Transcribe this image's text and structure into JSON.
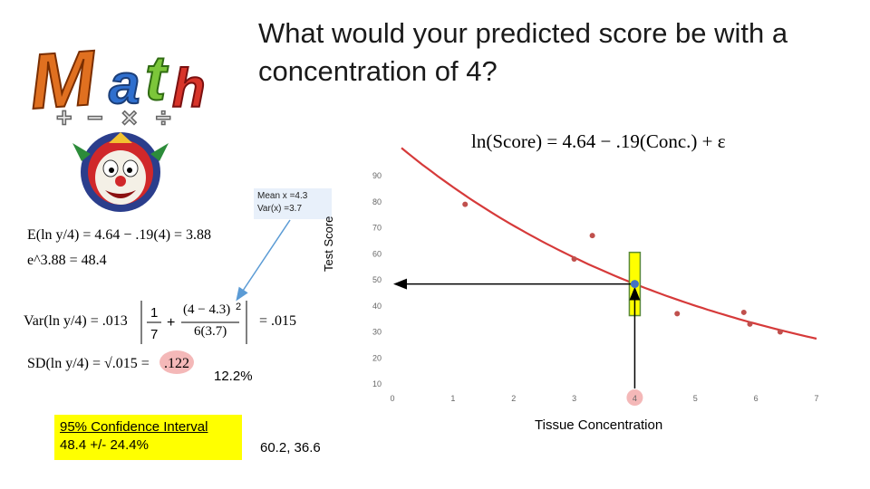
{
  "title": "What would your predicted score be with a concentration of 4?",
  "model_equation": "ln(Score) = 4.64 − .19(Conc.) + ε",
  "mean_box": {
    "line1": "Mean x =4.3",
    "line2": "Var(x) =3.7"
  },
  "equations": {
    "expected": "E(ln y/4) = 4.64 − .19(4) = 3.88",
    "exp": "e^3.88 = 48.4",
    "var_lhs": "Var(ln y/4) = .013",
    "var_frac_num": "(4 − 4.3)",
    "var_frac_den": "6(3.7)",
    "var_result": "= .015",
    "sd_lhs": "SD(ln y/4) = √.015 =",
    "sd_value": ".122"
  },
  "percent_label": "12.2%",
  "confidence_interval": {
    "title": "95% Confidence Interval",
    "value": "48.4 +/- 24.4%"
  },
  "ci_range": "60.2, 36.6",
  "colors": {
    "points": "#c0504d",
    "curve": "#d63a3a",
    "highlight": "#ffff00",
    "predicted": "#4472c4",
    "highlight_circle": "#f4b8b8"
  },
  "icons": {
    "logo": "math-logo-icon",
    "clown": "clown-face-icon"
  },
  "chart_data": {
    "type": "scatter",
    "xlabel": "Tissue Concentration",
    "ylabel": "Test Score",
    "xlim": [
      0,
      7
    ],
    "ylim": [
      10,
      90
    ],
    "xticks": [
      0,
      1,
      2,
      3,
      4,
      5,
      6,
      7
    ],
    "yticks": [
      10,
      20,
      30,
      40,
      50,
      60,
      70,
      80,
      90
    ],
    "grid": false,
    "highlighted_x_tick": 4,
    "points": [
      {
        "x": 1.2,
        "y": 79
      },
      {
        "x": 3.0,
        "y": 58
      },
      {
        "x": 3.3,
        "y": 67
      },
      {
        "x": 4.7,
        "y": 37
      },
      {
        "x": 5.8,
        "y": 37.5
      },
      {
        "x": 5.9,
        "y": 33
      },
      {
        "x": 6.4,
        "y": 30
      }
    ],
    "fit_curve": {
      "intercept": 4.64,
      "slope": -0.19,
      "x_start": 0.15,
      "x_end": 7
    },
    "prediction": {
      "x": 4,
      "y": 48.4,
      "interval": [
        36.6,
        60.2
      ]
    }
  }
}
